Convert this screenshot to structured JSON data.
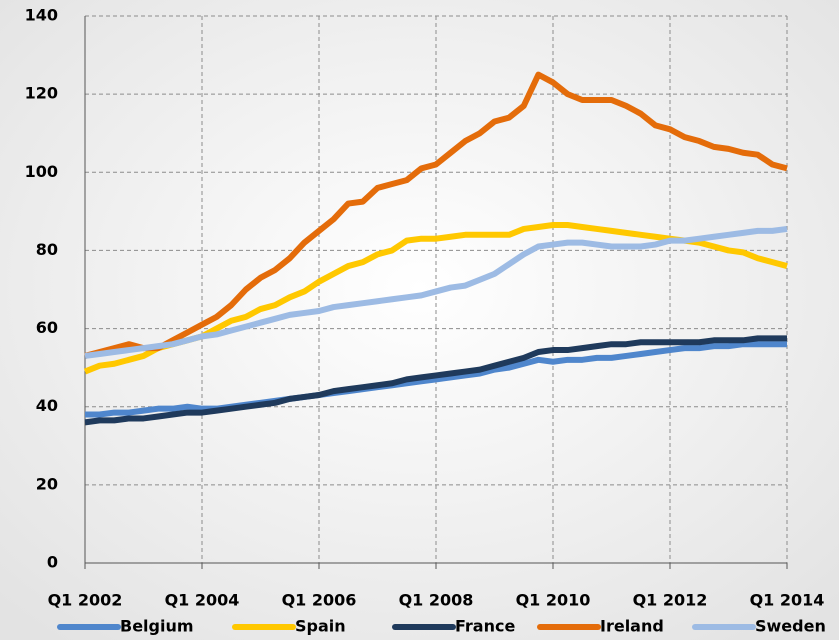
{
  "chart_data": {
    "type": "line",
    "categories": [
      "Q1 2002",
      null,
      null,
      null,
      null,
      null,
      null,
      null,
      "Q1 2004",
      null,
      null,
      null,
      null,
      null,
      null,
      null,
      "Q1 2006",
      null,
      null,
      null,
      null,
      null,
      null,
      null,
      "Q1 2008",
      null,
      null,
      null,
      null,
      null,
      null,
      null,
      "Q1 2010",
      null,
      null,
      null,
      null,
      null,
      null,
      null,
      "Q1 2012",
      null,
      null,
      null,
      null,
      null,
      null,
      null,
      "Q1 2014"
    ],
    "series": [
      {
        "name": "Belgium",
        "color": "#4f86cc",
        "values": [
          38,
          38,
          38.5,
          38.5,
          39,
          39.5,
          39.5,
          40,
          39.5,
          39.5,
          40,
          40.5,
          41,
          41.5,
          42,
          42.5,
          43,
          43.5,
          44,
          44.5,
          45,
          45.5,
          46,
          46.5,
          47,
          47.5,
          48,
          48.5,
          49.5,
          50,
          51,
          52,
          51.5,
          52,
          52,
          52.5,
          52.5,
          53,
          53.5,
          54,
          54.5,
          55,
          55,
          55.5,
          55.5,
          56,
          56,
          56,
          56
        ]
      },
      {
        "name": "Spain",
        "color": "#ffc800",
        "values": [
          49,
          50.5,
          51,
          52,
          53,
          55,
          56,
          57,
          58,
          60,
          62,
          63,
          65,
          66,
          68,
          69.5,
          72,
          74,
          76,
          77,
          79,
          80,
          82.5,
          83,
          83,
          83.5,
          84,
          84,
          84,
          84,
          85.5,
          86,
          86.5,
          86.5,
          86,
          85.5,
          85,
          84.5,
          84,
          83.5,
          83,
          82.5,
          82,
          81,
          80,
          79.5,
          78,
          77,
          76
        ]
      },
      {
        "name": "France",
        "color": "#1f3a5c",
        "values": [
          36,
          36.5,
          36.5,
          37,
          37,
          37.5,
          38,
          38.5,
          38.5,
          39,
          39.5,
          40,
          40.5,
          41,
          42,
          42.5,
          43,
          44,
          44.5,
          45,
          45.5,
          46,
          47,
          47.5,
          48,
          48.5,
          49,
          49.5,
          50.5,
          51.5,
          52.5,
          54,
          54.5,
          54.5,
          55,
          55.5,
          56,
          56,
          56.5,
          56.5,
          56.5,
          56.5,
          56.5,
          57,
          57,
          57,
          57.5,
          57.5,
          57.5
        ]
      },
      {
        "name": "Ireland",
        "color": "#e46c0a",
        "values": [
          53,
          54,
          55,
          56,
          55,
          55,
          57,
          59,
          61,
          63,
          66,
          70,
          73,
          75,
          78,
          82,
          85,
          88,
          92,
          92.5,
          96,
          97,
          98,
          101,
          102,
          105,
          108,
          110,
          113,
          114,
          117,
          125,
          123,
          120,
          118.5,
          118.5,
          118.5,
          117,
          115,
          112,
          111,
          109,
          108,
          106.5,
          106,
          105,
          104.5,
          102,
          101
        ]
      },
      {
        "name": "Sweden",
        "color": "#9dbbe4",
        "values": [
          53,
          53.5,
          54,
          54.5,
          55,
          55.5,
          56,
          57,
          58,
          58.5,
          59.5,
          60.5,
          61.5,
          62.5,
          63.5,
          64,
          64.5,
          65.5,
          66,
          66.5,
          67,
          67.5,
          68,
          68.5,
          69.5,
          70.5,
          71,
          72.5,
          74,
          76.5,
          79,
          81,
          81.5,
          82,
          82,
          81.5,
          81,
          81,
          81,
          81.5,
          82.5,
          82.5,
          83,
          83.5,
          84,
          84.5,
          85,
          85,
          85.5
        ]
      }
    ],
    "ylim": [
      0,
      140
    ],
    "yticks": [
      0,
      20,
      40,
      60,
      80,
      100,
      120,
      140
    ],
    "grid": true,
    "legend": "bottom"
  }
}
